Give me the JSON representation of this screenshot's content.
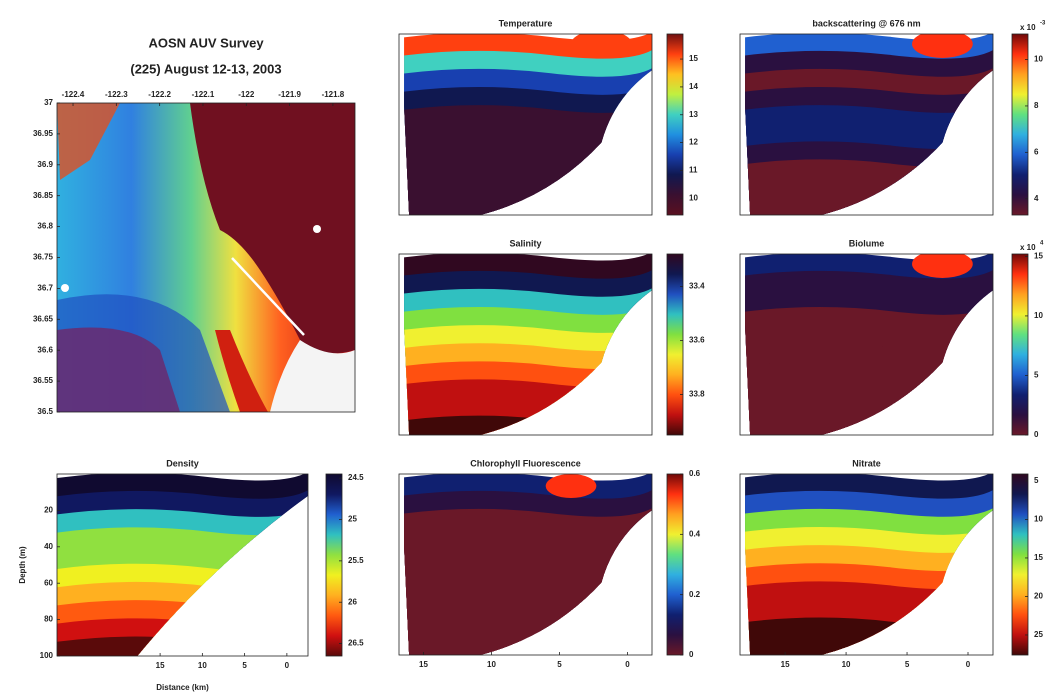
{
  "chart_data": [
    {
      "type": "map",
      "title": "AOSN AUV Survey",
      "subtitle": "(225) August 12-13, 2003",
      "xlim": [
        -122.437,
        -121.749
      ],
      "xticks": [
        -122.4,
        -122.3,
        -122.2,
        -122.1,
        -122,
        -121.9,
        -121.8
      ],
      "ylim": [
        36.5,
        37
      ],
      "yticks": [
        36.5,
        36.55,
        36.6,
        36.65,
        36.7,
        36.75,
        36.8,
        36.85,
        36.9,
        36.95,
        37
      ]
    },
    {
      "type": "section",
      "title": "Density",
      "xlabel": "Distance (km)",
      "ylabel": "Depth (m)",
      "xlim": [
        27.2,
        -2.5
      ],
      "xticks": [
        15,
        10,
        5,
        0
      ],
      "ylim": [
        100,
        0
      ],
      "yticks": [
        20,
        40,
        60,
        80,
        100
      ],
      "clim": [
        26.65,
        24.45
      ],
      "cticks": [
        24.5,
        25,
        25.5,
        26,
        26.5
      ],
      "colors": [
        "#5a0a0a",
        "#d01010",
        "#ff5a10",
        "#ffb020",
        "#f0f020",
        "#90e040",
        "#30c0c0",
        "#2060d0",
        "#101860",
        "#100a30"
      ]
    },
    {
      "type": "section",
      "title": "Temperature",
      "clim": [
        9.4,
        15.9
      ],
      "cticks": [
        10,
        11,
        12,
        13,
        14,
        15
      ],
      "colors": [
        "#5a1020",
        "#3a1030",
        "#101850",
        "#1840b0",
        "#2090e0",
        "#40d0c0",
        "#c0f040",
        "#ffc020",
        "#ff4010",
        "#701010"
      ]
    },
    {
      "type": "section",
      "title": "Salinity",
      "clim": [
        33.95,
        33.28
      ],
      "cticks": [
        33.4,
        33.6,
        33.8
      ],
      "colors": [
        "#400808",
        "#c01010",
        "#ff5010",
        "#ffb020",
        "#f0f030",
        "#80e040",
        "#30c0c0",
        "#2050c0",
        "#101850",
        "#300820"
      ]
    },
    {
      "type": "section",
      "title": "Chlorophyll Fluorescence",
      "xlim": [
        16.8,
        -1.8
      ],
      "xticks": [
        15,
        10,
        5,
        0
      ],
      "clim": [
        0,
        0.6
      ],
      "cticks": [
        0,
        0.2,
        0.4,
        0.6
      ],
      "colors": [
        "#6a1828",
        "#2a1040",
        "#102070",
        "#2060d0",
        "#30b0e0",
        "#60e080",
        "#f0f030",
        "#ffa020",
        "#ff3010",
        "#700808"
      ]
    },
    {
      "type": "section",
      "title": "backscattering @ 676 nm",
      "cmultiplier": "x 10",
      "cexponent": "-3",
      "clim": [
        3.3,
        11.1
      ],
      "cticks": [
        4,
        6,
        8,
        10
      ],
      "colors": [
        "#6a1828",
        "#2a1040",
        "#102070",
        "#2060d0",
        "#30b0e0",
        "#60e080",
        "#f0f030",
        "#ffa020",
        "#ff3010",
        "#700808"
      ]
    },
    {
      "type": "section",
      "title": "Biolume",
      "cmultiplier": "x 10",
      "cexponent": "4",
      "clim": [
        0,
        15.2
      ],
      "cticks": [
        0,
        5,
        10,
        15
      ],
      "colors": [
        "#6a1828",
        "#2a1040",
        "#102070",
        "#2060d0",
        "#30b0e0",
        "#60e080",
        "#f0f030",
        "#ffa020",
        "#ff3010",
        "#700808"
      ]
    },
    {
      "type": "section",
      "title": "Nitrate",
      "xlim": [
        18.7,
        -2.05
      ],
      "xticks": [
        15,
        10,
        5,
        0
      ],
      "clim": [
        27.6,
        4.1
      ],
      "cticks": [
        5,
        10,
        15,
        20,
        25
      ],
      "colors": [
        "#400808",
        "#c01010",
        "#ff5010",
        "#ffb020",
        "#f0f030",
        "#80e040",
        "#30c0c0",
        "#2050c0",
        "#101850",
        "#300820"
      ]
    }
  ]
}
